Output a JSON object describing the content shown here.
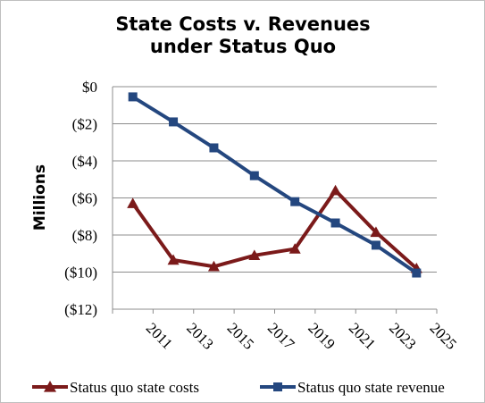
{
  "chart_data": {
    "type": "line",
    "title_lines": [
      "State Costs v. Revenues",
      "under Status Quo"
    ],
    "ylabel": "Millions",
    "xlabel": "",
    "categories": [
      "2011",
      "2013",
      "2015",
      "2017",
      "2019",
      "2021",
      "2023",
      "2025"
    ],
    "ylim": [
      -12,
      0
    ],
    "y_ticks": [
      0,
      -2,
      -4,
      -6,
      -8,
      -10,
      -12
    ],
    "y_tick_labels": [
      "$0",
      "($2)",
      "($4)",
      "($6)",
      "($8)",
      "($10)",
      "($12)"
    ],
    "grid": true,
    "legend_position": "bottom",
    "series": [
      {
        "name": "Status quo state costs",
        "color": "#7b1a1a",
        "marker": "triangle",
        "values": [
          -6.3,
          -9.35,
          -9.7,
          -9.1,
          -8.75,
          -5.6,
          -7.85,
          -9.8
        ]
      },
      {
        "name": "Status quo state revenue",
        "color": "#24477f",
        "marker": "square",
        "values": [
          -0.55,
          -1.9,
          -3.3,
          -4.8,
          -6.2,
          -7.35,
          -8.55,
          -10.05
        ]
      }
    ]
  }
}
